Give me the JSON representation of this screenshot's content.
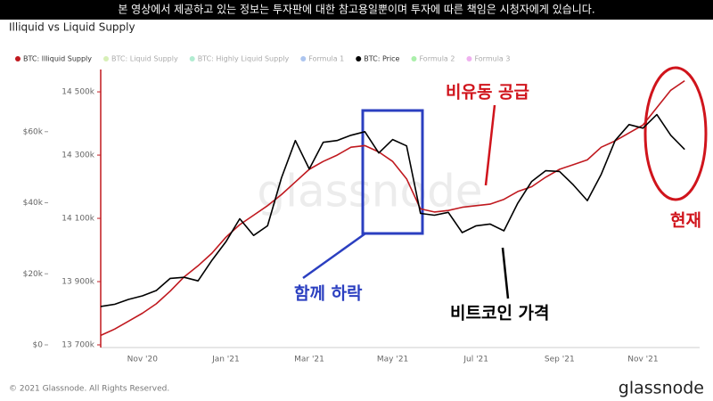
{
  "banner": "본 영상에서 제공하고 있는 정보는 투자판에 대한 참고용일뿐이며 투자에 따른 책임은 시청자에게 있습니다.",
  "footer": "© 2021 Glassnode. All Rights Reserved.",
  "logo": "glassnode",
  "chart_data": {
    "type": "line",
    "title": "Illiquid vs Liquid Supply",
    "watermark": "glassnode",
    "categories": [
      null,
      null,
      null,
      "Nov '20",
      null,
      null,
      null,
      null,
      null,
      "Jan '21",
      null,
      null,
      null,
      null,
      null,
      "Mar '21",
      null,
      null,
      null,
      null,
      null,
      "May '21",
      null,
      null,
      null,
      null,
      null,
      "Jul '21",
      null,
      null,
      null,
      null,
      null,
      "Sep '21",
      null,
      null,
      null,
      null,
      null,
      "Nov '21",
      null,
      null,
      null
    ],
    "series": [
      {
        "name": "BTC: Illiquid Supply",
        "color": "#c0191f",
        "axis": "y",
        "values": [
          13730000,
          13750000,
          13775000,
          13800000,
          13830000,
          13870000,
          13915000,
          13950000,
          13990000,
          14040000,
          14080000,
          14110000,
          14140000,
          14175000,
          14215000,
          14255000,
          14280000,
          14300000,
          14325000,
          14330000,
          14310000,
          14280000,
          14225000,
          14130000,
          14120000,
          14125000,
          14135000,
          14140000,
          14145000,
          14160000,
          14185000,
          14200000,
          14230000,
          14255000,
          14270000,
          14285000,
          14325000,
          14345000,
          14370000,
          14395000,
          14450000,
          14505000,
          14535000
        ]
      },
      {
        "name": "BTC: Price",
        "color": "#000000",
        "axis": "y2",
        "values": [
          10800,
          11400,
          12800,
          13800,
          15300,
          18700,
          19000,
          18000,
          23800,
          29000,
          35500,
          30800,
          33500,
          47000,
          57500,
          49500,
          57000,
          57500,
          59000,
          60000,
          54000,
          57800,
          56000,
          37000,
          36500,
          37300,
          31600,
          33500,
          34000,
          32100,
          39900,
          46000,
          49000,
          48800,
          45000,
          40600,
          48000,
          57500,
          62000,
          61000,
          64800,
          59000,
          55000
        ]
      }
    ],
    "legend_items": [
      {
        "name": "BTC: Illiquid Supply",
        "color": "#c0191f",
        "active": true
      },
      {
        "name": "BTC: Liquid Supply",
        "color": "#9ad64a",
        "active": false
      },
      {
        "name": "BTC: Highly Liquid Supply",
        "color": "#3ccf8c",
        "active": false
      },
      {
        "name": "Formula 1",
        "color": "#2f6fd6",
        "active": false
      },
      {
        "name": "BTC: Price",
        "color": "#000000",
        "active": true
      },
      {
        "name": "Formula 2",
        "color": "#2bd62b",
        "active": false
      },
      {
        "name": "Formula 3",
        "color": "#d63bd6",
        "active": false
      }
    ],
    "ylim": [
      13700000,
      14565000
    ],
    "yticks": [
      {
        "value": 13700000,
        "label": "13 700k"
      },
      {
        "value": 13900000,
        "label": "13 900k"
      },
      {
        "value": 14100000,
        "label": "14 100k"
      },
      {
        "value": 14300000,
        "label": "14 300k"
      },
      {
        "value": 14500000,
        "label": "14 500k"
      }
    ],
    "y2lim": [
      0,
      77000
    ],
    "y2ticks": [
      {
        "value": 0,
        "label": "$0"
      },
      {
        "value": 20000,
        "label": "$20k"
      },
      {
        "value": 40000,
        "label": "$40k"
      },
      {
        "value": 60000,
        "label": "$60k"
      }
    ],
    "annotations": [
      {
        "text": "비유동 공급",
        "color": "#d0141c"
      },
      {
        "text": "함께 하락",
        "color": "#2b3fc0"
      },
      {
        "text": "비트코인 가격",
        "color": "#000000"
      },
      {
        "text": "현재",
        "color": "#d0141c"
      }
    ]
  }
}
